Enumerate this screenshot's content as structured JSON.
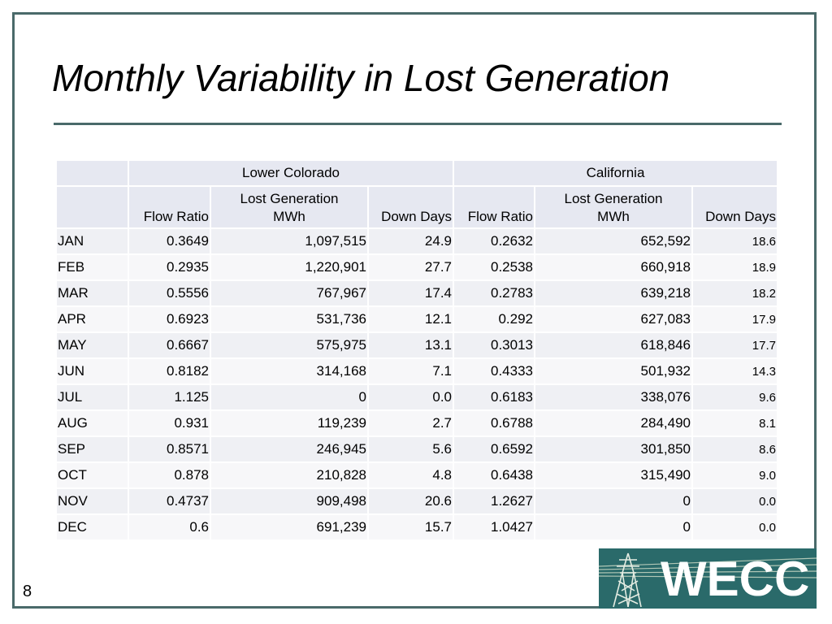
{
  "title": "Monthly Variability in Lost Generation",
  "page_number": "8",
  "logo_text": "WECC",
  "table": {
    "groups": [
      "Lower Colorado",
      "California"
    ],
    "columns": [
      "Flow Ratio",
      "Lost Generation\nMWh",
      "Down Days",
      "Flow Ratio",
      "Lost Generation\nMWh",
      "Down Days"
    ],
    "rows": [
      [
        "JAN",
        "0.3649",
        "1,097,515",
        "24.9",
        "0.2632",
        "652,592",
        "18.6"
      ],
      [
        "FEB",
        "0.2935",
        "1,220,901",
        "27.7",
        "0.2538",
        "660,918",
        "18.9"
      ],
      [
        "MAR",
        "0.5556",
        "767,967",
        "17.4",
        "0.2783",
        "639,218",
        "18.2"
      ],
      [
        "APR",
        "0.6923",
        "531,736",
        "12.1",
        "0.292",
        "627,083",
        "17.9"
      ],
      [
        "MAY",
        "0.6667",
        "575,975",
        "13.1",
        "0.3013",
        "618,846",
        "17.7"
      ],
      [
        "JUN",
        "0.8182",
        "314,168",
        "7.1",
        "0.4333",
        "501,932",
        "14.3"
      ],
      [
        "JUL",
        "1.125",
        "0",
        "0.0",
        "0.6183",
        "338,076",
        "9.6"
      ],
      [
        "AUG",
        "0.931",
        "119,239",
        "2.7",
        "0.6788",
        "284,490",
        "8.1"
      ],
      [
        "SEP",
        "0.8571",
        "246,945",
        "5.6",
        "0.6592",
        "301,850",
        "8.6"
      ],
      [
        "OCT",
        "0.878",
        "210,828",
        "4.8",
        "0.6438",
        "315,490",
        "9.0"
      ],
      [
        "NOV",
        "0.4737",
        "909,498",
        "20.6",
        "1.2627",
        "0",
        "0.0"
      ],
      [
        "DEC",
        "0.6",
        "691,239",
        "15.7",
        "1.0427",
        "0",
        "0.0"
      ]
    ]
  }
}
